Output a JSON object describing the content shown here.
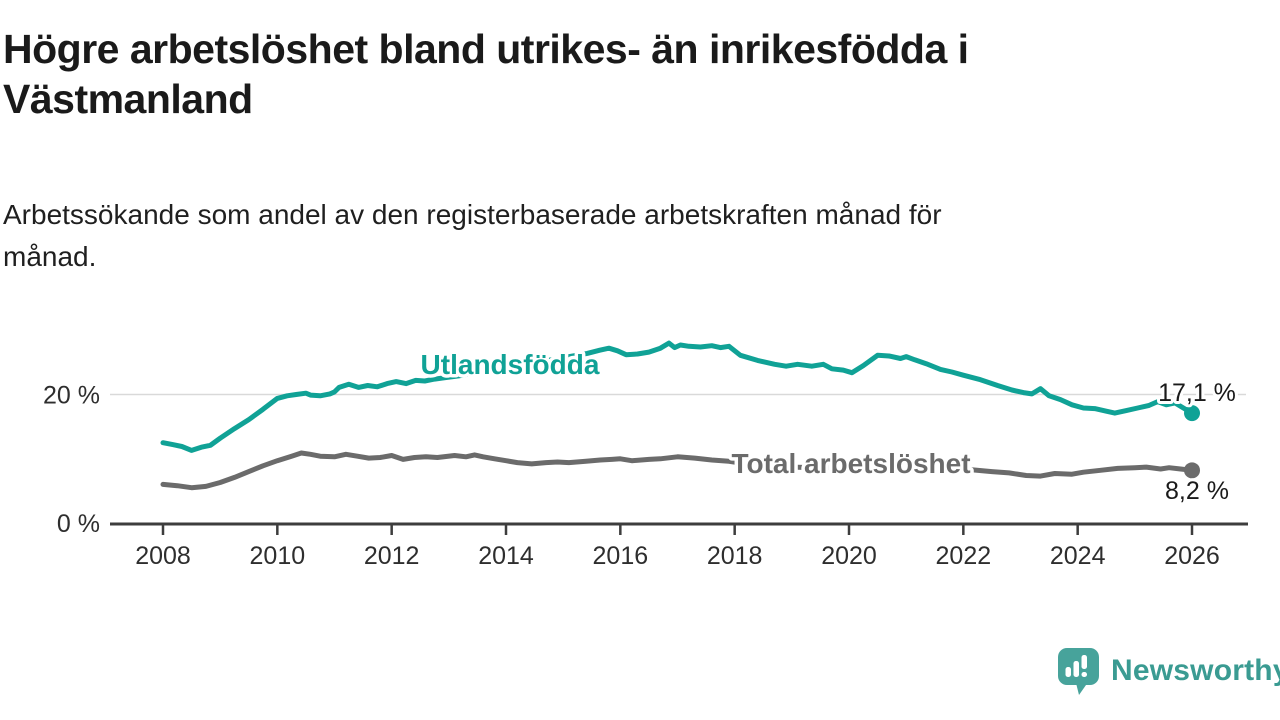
{
  "title": {
    "lines": [
      "Högre arbetslöshet bland utrikes- än inrikesfödda i",
      "Västmanland"
    ]
  },
  "subtitle": {
    "lines": [
      "Arbetssökande som andel av den registerbaserade arbetskraften månad för",
      "månad."
    ]
  },
  "branding": {
    "name": "Newsworthy",
    "icon": "newsworthy-speech-bubble-bar-chart-logo",
    "text_color": "#3a9b92",
    "bubble_color": "#47a39b"
  },
  "chart_data": {
    "type": "line",
    "unit": "%",
    "x_axis": {
      "ticks": [
        "2008",
        "2010",
        "2012",
        "2014",
        "2016",
        "2018",
        "2020",
        "2022",
        "2024",
        "2026"
      ]
    },
    "y_axis": {
      "ticks": [
        {
          "label": "0 %",
          "value": 0
        },
        {
          "label": "20 %",
          "value": 20
        }
      ],
      "ylim": [
        0,
        30
      ],
      "gridlines": [
        20
      ]
    },
    "legend": "inline labels next to lines",
    "style": {
      "axis_color": "#3d3d3d",
      "grid_color": "#d9d9d9",
      "tick_text_color": "#2e2e2e",
      "value_text_color": "#1a1a1a"
    },
    "series": [
      {
        "name": "Utlandsfödda",
        "color": "#10a296",
        "end_label": "17,1 %",
        "end_value": 17.1,
        "points": [
          [
            2008.0,
            12.5
          ],
          [
            2008.17,
            12.2
          ],
          [
            2008.33,
            11.9
          ],
          [
            2008.5,
            11.3
          ],
          [
            2008.67,
            11.8
          ],
          [
            2008.83,
            12.1
          ],
          [
            2009.0,
            13.2
          ],
          [
            2009.25,
            14.7
          ],
          [
            2009.5,
            16.1
          ],
          [
            2009.75,
            17.7
          ],
          [
            2010.0,
            19.4
          ],
          [
            2010.17,
            19.8
          ],
          [
            2010.33,
            20.0
          ],
          [
            2010.5,
            20.2
          ],
          [
            2010.58,
            19.9
          ],
          [
            2010.75,
            19.8
          ],
          [
            2010.92,
            20.1
          ],
          [
            2011.0,
            20.4
          ],
          [
            2011.08,
            21.1
          ],
          [
            2011.25,
            21.6
          ],
          [
            2011.42,
            21.1
          ],
          [
            2011.58,
            21.4
          ],
          [
            2011.75,
            21.2
          ],
          [
            2011.92,
            21.7
          ],
          [
            2012.08,
            22.0
          ],
          [
            2012.25,
            21.7
          ],
          [
            2012.42,
            22.2
          ],
          [
            2012.58,
            22.1
          ],
          [
            2012.75,
            22.4
          ],
          [
            2012.92,
            22.6
          ],
          [
            2013.17,
            22.9
          ],
          [
            2013.42,
            23.3
          ],
          [
            2013.67,
            23.7
          ],
          [
            2013.92,
            24.1
          ],
          [
            2014.17,
            24.5
          ],
          [
            2014.42,
            24.8
          ],
          [
            2014.67,
            25.2
          ],
          [
            2014.92,
            25.6
          ],
          [
            2015.17,
            26.0
          ],
          [
            2015.42,
            26.4
          ],
          [
            2015.64,
            26.9
          ],
          [
            2015.8,
            27.2
          ],
          [
            2015.95,
            26.8
          ],
          [
            2016.1,
            26.2
          ],
          [
            2016.3,
            26.3
          ],
          [
            2016.5,
            26.6
          ],
          [
            2016.7,
            27.2
          ],
          [
            2016.85,
            28.0
          ],
          [
            2016.95,
            27.3
          ],
          [
            2017.05,
            27.7
          ],
          [
            2017.2,
            27.5
          ],
          [
            2017.4,
            27.4
          ],
          [
            2017.6,
            27.6
          ],
          [
            2017.75,
            27.3
          ],
          [
            2017.9,
            27.5
          ],
          [
            2018.1,
            26.1
          ],
          [
            2018.4,
            25.3
          ],
          [
            2018.7,
            24.7
          ],
          [
            2018.9,
            24.4
          ],
          [
            2019.1,
            24.7
          ],
          [
            2019.35,
            24.4
          ],
          [
            2019.55,
            24.7
          ],
          [
            2019.7,
            24.0
          ],
          [
            2019.9,
            23.8
          ],
          [
            2020.05,
            23.4
          ],
          [
            2020.25,
            24.5
          ],
          [
            2020.5,
            26.1
          ],
          [
            2020.7,
            26.0
          ],
          [
            2020.9,
            25.6
          ],
          [
            2021.0,
            25.9
          ],
          [
            2021.15,
            25.4
          ],
          [
            2021.35,
            24.8
          ],
          [
            2021.6,
            23.9
          ],
          [
            2021.8,
            23.5
          ],
          [
            2022.0,
            23.0
          ],
          [
            2022.3,
            22.3
          ],
          [
            2022.6,
            21.4
          ],
          [
            2022.85,
            20.7
          ],
          [
            2023.05,
            20.3
          ],
          [
            2023.2,
            20.1
          ],
          [
            2023.35,
            20.9
          ],
          [
            2023.5,
            19.8
          ],
          [
            2023.7,
            19.2
          ],
          [
            2023.9,
            18.4
          ],
          [
            2024.1,
            17.9
          ],
          [
            2024.3,
            17.8
          ],
          [
            2024.5,
            17.4
          ],
          [
            2024.65,
            17.1
          ],
          [
            2024.85,
            17.5
          ],
          [
            2025.05,
            17.9
          ],
          [
            2025.25,
            18.3
          ],
          [
            2025.4,
            18.9
          ],
          [
            2025.55,
            18.4
          ],
          [
            2025.7,
            18.7
          ],
          [
            2025.85,
            17.9
          ],
          [
            2026.0,
            17.1
          ]
        ]
      },
      {
        "name": "Total arbetslöshet",
        "color": "#6b6b6b",
        "end_label": "8,2 %",
        "end_value": 8.2,
        "points": [
          [
            2008.0,
            6.0
          ],
          [
            2008.25,
            5.8
          ],
          [
            2008.5,
            5.5
          ],
          [
            2008.75,
            5.7
          ],
          [
            2009.0,
            6.3
          ],
          [
            2009.25,
            7.1
          ],
          [
            2009.5,
            8.0
          ],
          [
            2009.75,
            8.9
          ],
          [
            2010.0,
            9.7
          ],
          [
            2010.25,
            10.4
          ],
          [
            2010.42,
            10.9
          ],
          [
            2010.58,
            10.7
          ],
          [
            2010.75,
            10.4
          ],
          [
            2011.0,
            10.3
          ],
          [
            2011.2,
            10.7
          ],
          [
            2011.4,
            10.4
          ],
          [
            2011.6,
            10.1
          ],
          [
            2011.8,
            10.2
          ],
          [
            2012.0,
            10.5
          ],
          [
            2012.2,
            9.9
          ],
          [
            2012.4,
            10.2
          ],
          [
            2012.6,
            10.3
          ],
          [
            2012.8,
            10.2
          ],
          [
            2013.1,
            10.5
          ],
          [
            2013.3,
            10.3
          ],
          [
            2013.45,
            10.6
          ],
          [
            2013.6,
            10.3
          ],
          [
            2013.8,
            10.0
          ],
          [
            2014.0,
            9.7
          ],
          [
            2014.2,
            9.4
          ],
          [
            2014.45,
            9.2
          ],
          [
            2014.7,
            9.4
          ],
          [
            2014.9,
            9.5
          ],
          [
            2015.1,
            9.4
          ],
          [
            2015.4,
            9.6
          ],
          [
            2015.65,
            9.8
          ],
          [
            2015.85,
            9.9
          ],
          [
            2016.0,
            10.0
          ],
          [
            2016.2,
            9.7
          ],
          [
            2016.5,
            9.9
          ],
          [
            2016.7,
            10.0
          ],
          [
            2017.0,
            10.3
          ],
          [
            2017.3,
            10.1
          ],
          [
            2017.6,
            9.8
          ],
          [
            2017.9,
            9.6
          ],
          [
            2018.2,
            9.2
          ],
          [
            2018.6,
            8.9
          ],
          [
            2019.0,
            8.7
          ],
          [
            2019.5,
            8.6
          ],
          [
            2019.9,
            8.7
          ],
          [
            2020.3,
            9.4
          ],
          [
            2020.6,
            9.6
          ],
          [
            2021.0,
            9.3
          ],
          [
            2021.5,
            8.9
          ],
          [
            2022.0,
            8.4
          ],
          [
            2022.5,
            8.0
          ],
          [
            2022.8,
            7.8
          ],
          [
            2023.1,
            7.4
          ],
          [
            2023.35,
            7.3
          ],
          [
            2023.6,
            7.7
          ],
          [
            2023.9,
            7.6
          ],
          [
            2024.1,
            7.9
          ],
          [
            2024.4,
            8.2
          ],
          [
            2024.7,
            8.5
          ],
          [
            2025.0,
            8.6
          ],
          [
            2025.2,
            8.7
          ],
          [
            2025.45,
            8.4
          ],
          [
            2025.6,
            8.6
          ],
          [
            2025.8,
            8.4
          ],
          [
            2026.0,
            8.2
          ]
        ]
      }
    ]
  }
}
